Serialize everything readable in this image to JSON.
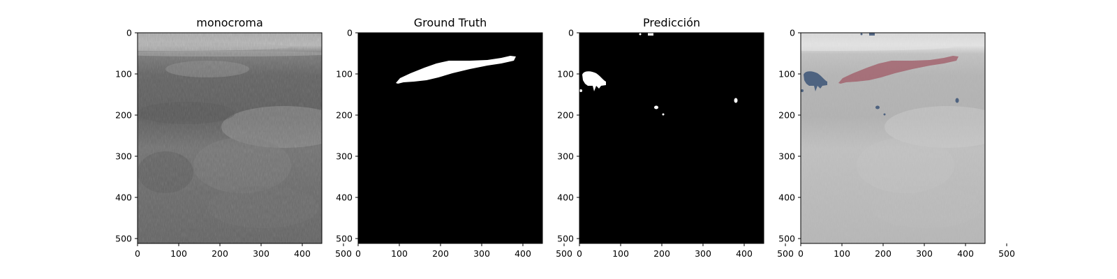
{
  "figure": {
    "panels": [
      {
        "id": "monocroma",
        "title": "monocroma",
        "kind": "ultrasound",
        "xticks": [
          "0",
          "100",
          "200",
          "300",
          "400",
          "500"
        ],
        "yticks": [
          "0",
          "100",
          "200",
          "300",
          "400",
          "500"
        ]
      },
      {
        "id": "ground-truth",
        "title": "Ground Truth",
        "kind": "mask",
        "xticks": [
          "0",
          "100",
          "200",
          "300",
          "400",
          "500"
        ],
        "yticks": [
          "0",
          "100",
          "200",
          "300",
          "400",
          "500"
        ]
      },
      {
        "id": "prediccion",
        "title": "Predicción",
        "kind": "mask",
        "xticks": [
          "0",
          "100",
          "200",
          "300",
          "400",
          "500"
        ],
        "yticks": [
          "0",
          "100",
          "200",
          "300",
          "400",
          "500"
        ]
      },
      {
        "id": "overlay",
        "title": "",
        "kind": "overlay",
        "xticks": [
          "0",
          "100",
          "200",
          "300",
          "400",
          "500"
        ],
        "yticks": [
          "0",
          "100",
          "200",
          "300",
          "400",
          "500"
        ]
      }
    ],
    "colors": {
      "mask_background": "#000000",
      "mask_foreground": "#ffffff",
      "overlay_ground_truth": "#a05a66",
      "overlay_prediction": "#3d5577"
    }
  }
}
